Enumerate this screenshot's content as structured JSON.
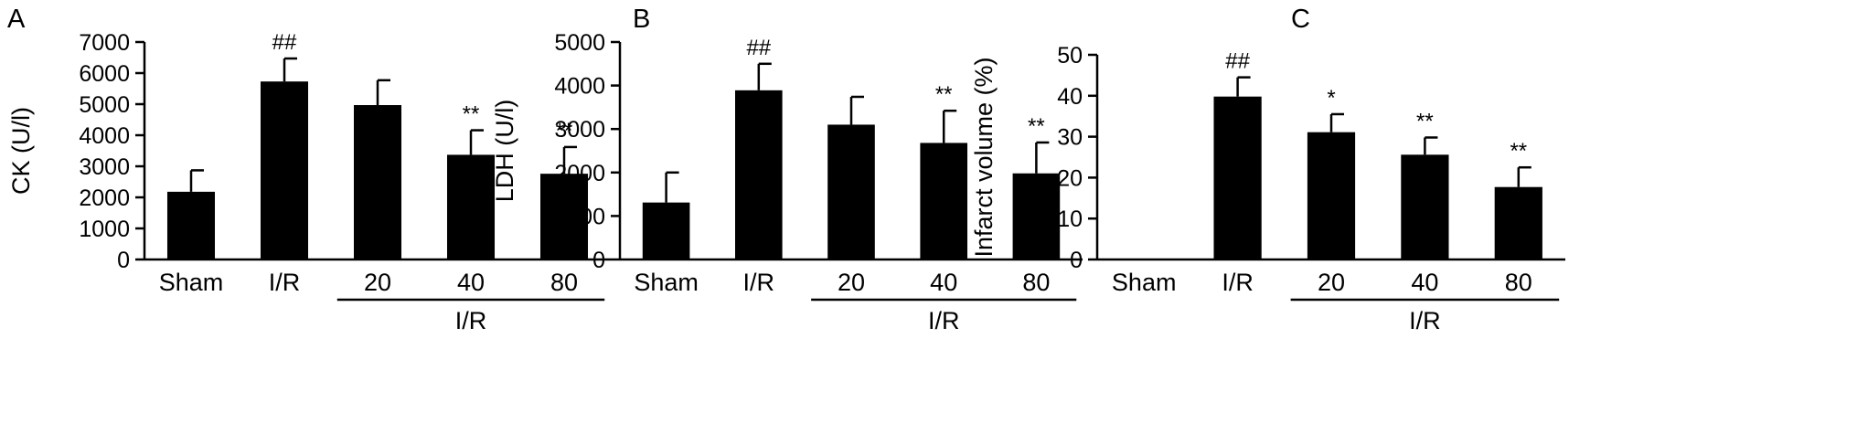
{
  "colors": {
    "bar": "#000000",
    "axis": "#000000",
    "background": "#ffffff"
  },
  "chart_data": [
    {
      "type": "bar",
      "panel": "A",
      "ylabel": "CK (U/l)",
      "ylim": [
        0,
        7000
      ],
      "yticks": [
        0,
        1000,
        2000,
        3000,
        4000,
        5000,
        6000,
        7000
      ],
      "categories": [
        "Sham",
        "I/R",
        "20",
        "40",
        "80"
      ],
      "values": [
        2180,
        5730,
        4970,
        3370,
        2760
      ],
      "errors": [
        690,
        740,
        800,
        790,
        860
      ],
      "significance": [
        "",
        "##",
        "",
        "**",
        "**"
      ],
      "group_label": "I/R"
    },
    {
      "type": "bar",
      "panel": "B",
      "ylabel": "LDH (U/l)",
      "ylim": [
        0,
        5000
      ],
      "yticks": [
        0,
        1000,
        2000,
        3000,
        4000,
        5000
      ],
      "categories": [
        "Sham",
        "I/R",
        "20",
        "40",
        "80"
      ],
      "values": [
        1310,
        3890,
        3100,
        2680,
        1980
      ],
      "errors": [
        690,
        610,
        640,
        740,
        710
      ],
      "significance": [
        "",
        "##",
        "",
        "**",
        "**"
      ],
      "group_label": "I/R"
    },
    {
      "type": "bar",
      "panel": "C",
      "ylabel": "Infarct volume (%)",
      "ylim": [
        0,
        50
      ],
      "yticks": [
        0,
        10,
        20,
        30,
        40,
        50
      ],
      "categories": [
        "Sham",
        "I/R",
        "20",
        "40",
        "80"
      ],
      "values": [
        0,
        39.8,
        31.1,
        25.6,
        17.7
      ],
      "errors": [
        0,
        4.7,
        4.4,
        4.2,
        4.8
      ],
      "significance": [
        "",
        "##",
        "*",
        "**",
        "**"
      ],
      "group_label": "I/R"
    }
  ]
}
